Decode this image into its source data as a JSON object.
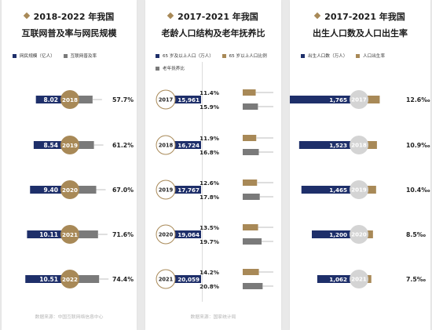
{
  "colors": {
    "navy": "#1e2f6a",
    "gold": "#a88957",
    "gray": "#7a7a7a",
    "light_gray": "#d4d4d4"
  },
  "panels": [
    {
      "title": "2018-2022 年我国",
      "subtitle": "互联网普及率与网民规模",
      "legend": [
        {
          "label": "网民规模（亿人）",
          "color": "#1e2f6a"
        },
        {
          "label": "互联网普及率",
          "color": "#7a7a7a"
        }
      ],
      "source": "数据来源：中国互联网络信息中心"
    },
    {
      "title": "2017-2021 年我国",
      "subtitle": "老龄人口结构及老年抚养比",
      "legend": [
        {
          "label": "65 岁及以上人口（万人）",
          "color": "#1e2f6a"
        },
        {
          "label": "65 岁以上人口比例",
          "color": "#a88957"
        },
        {
          "label": "老年抚养比",
          "color": "#7a7a7a"
        }
      ],
      "source": "数据来源：国家统计局"
    },
    {
      "title": "2017-2021 年我国",
      "subtitle": "出生人口数及人口出生率",
      "legend": [
        {
          "label": "出生人口数（万人）",
          "color": "#1e2f6a"
        },
        {
          "label": "人口出生率",
          "color": "#a88957"
        }
      ],
      "source": ""
    }
  ],
  "chart_data": [
    {
      "type": "bar",
      "categories": [
        "2018",
        "2019",
        "2020",
        "2021",
        "2022"
      ],
      "series": [
        {
          "name": "网民规模（亿人）",
          "values": [
            8.02,
            8.54,
            9.4,
            10.11,
            10.51
          ],
          "labels": [
            "8.02",
            "8.54",
            "9.40",
            "10.11",
            "10.51"
          ]
        },
        {
          "name": "互联网普及率",
          "values": [
            57.7,
            61.2,
            67.0,
            71.6,
            74.4
          ],
          "labels": [
            "57.7%",
            "61.2%",
            "67.0%",
            "71.6%",
            "74.4%"
          ]
        }
      ]
    },
    {
      "type": "bar",
      "categories": [
        "2017",
        "2018",
        "2019",
        "2020",
        "2021"
      ],
      "series": [
        {
          "name": "65 岁及以上人口（万人）",
          "values": [
            15961,
            16724,
            17767,
            19064,
            20059
          ],
          "labels": [
            "15,961",
            "16,724",
            "17,767",
            "19,064",
            "20,059"
          ]
        },
        {
          "name": "65 岁以上人口比例",
          "values": [
            11.4,
            11.9,
            12.6,
            13.5,
            14.2
          ],
          "labels": [
            "11.4%",
            "11.9%",
            "12.6%",
            "13.5%",
            "14.2%"
          ]
        },
        {
          "name": "老年抚养比",
          "values": [
            15.9,
            16.8,
            17.8,
            19.7,
            20.8
          ],
          "labels": [
            "15.9%",
            "16.8%",
            "17.8%",
            "19.7%",
            "20.8%"
          ]
        }
      ]
    },
    {
      "type": "bar",
      "categories": [
        "2017",
        "2018",
        "2019",
        "2020",
        "2021"
      ],
      "series": [
        {
          "name": "出生人口数（万人）",
          "values": [
            1765,
            1523,
            1465,
            1200,
            1062
          ],
          "labels": [
            "1,765",
            "1,523",
            "1,465",
            "1,200",
            "1,062"
          ]
        },
        {
          "name": "人口出生率",
          "values": [
            12.6,
            10.9,
            10.4,
            8.5,
            7.5
          ],
          "labels": [
            "12.6‰",
            "10.9‰",
            "10.4‰",
            "8.5‰",
            "7.5‰"
          ]
        }
      ]
    }
  ]
}
